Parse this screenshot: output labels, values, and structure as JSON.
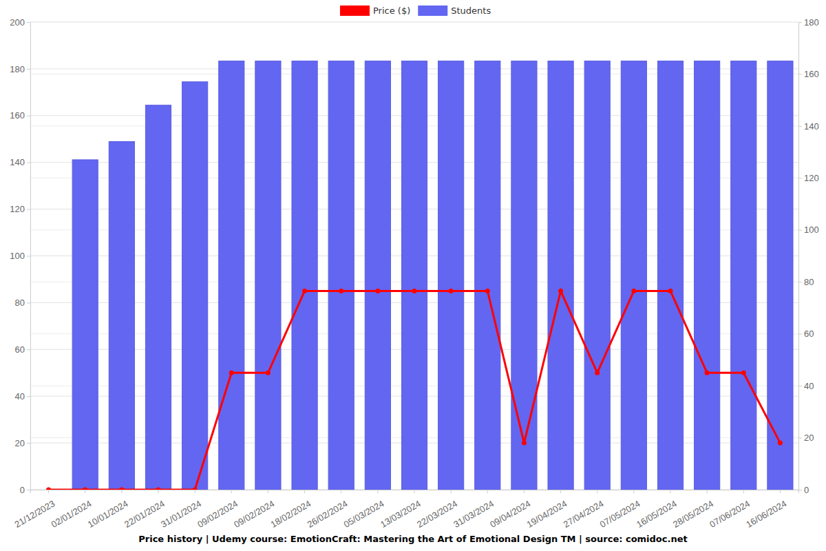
{
  "chart_data": {
    "type": "bar",
    "title": "Price history | Udemy course: EmotionCraft: Mastering the Art of Emotional Design TM | source: comidoc.net",
    "categories": [
      "21/12/2023",
      "02/01/2024",
      "10/01/2024",
      "22/01/2024",
      "31/01/2024",
      "09/02/2024",
      "09/02/2024",
      "18/02/2024",
      "26/02/2024",
      "05/03/2024",
      "13/03/2024",
      "22/03/2024",
      "31/03/2024",
      "09/04/2024",
      "19/04/2024",
      "27/04/2024",
      "07/05/2024",
      "16/05/2024",
      "28/05/2024",
      "07/06/2024",
      "16/06/2024"
    ],
    "series": [
      {
        "name": "Price ($)",
        "type": "line",
        "color": "#ff0000",
        "marker": "circle",
        "values": [
          0,
          0,
          0,
          0,
          0,
          50,
          50,
          85,
          85,
          85,
          85,
          85,
          85,
          20,
          85,
          50,
          85,
          85,
          50,
          50,
          20
        ]
      },
      {
        "name": "Students",
        "type": "bar",
        "color": "#6366f1",
        "axis": "y2",
        "values": [
          null,
          127,
          134,
          148,
          157,
          165,
          165,
          165,
          165,
          165,
          165,
          165,
          165,
          165,
          165,
          165,
          165,
          165,
          165,
          165,
          165
        ]
      }
    ],
    "ylim": [
      0,
      200
    ],
    "yticks": [
      0,
      20,
      40,
      60,
      80,
      100,
      120,
      140,
      160,
      180,
      200
    ],
    "y2lim": [
      0,
      180
    ],
    "y2ticks": [
      0,
      20,
      40,
      60,
      80,
      100,
      120,
      140,
      160,
      180
    ],
    "grid": true,
    "legend": "top"
  }
}
